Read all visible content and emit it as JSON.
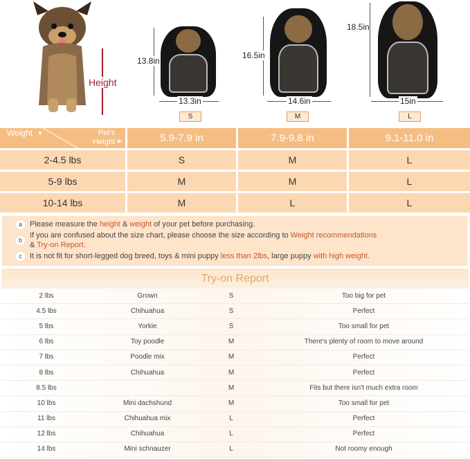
{
  "hero": {
    "height_label": "Height"
  },
  "products": [
    {
      "size": "S",
      "height": "13.8in",
      "width": "13.3in"
    },
    {
      "size": "M",
      "height": "16.5in",
      "width": "14.6in"
    },
    {
      "size": "L",
      "height": "18.5in",
      "width": "15in"
    }
  ],
  "size_chart": {
    "corner_weight": "Weight",
    "corner_height": "Pet's Height",
    "columns": [
      "5.9-7.9 in",
      "7.9-9.8 in",
      "9.1-11.0 in"
    ],
    "rows": [
      {
        "weight": "2-4.5 lbs",
        "sizes": [
          "S",
          "M",
          "L"
        ]
      },
      {
        "weight": "5-9 lbs",
        "sizes": [
          "M",
          "M",
          "L"
        ]
      },
      {
        "weight": "10-14 lbs",
        "sizes": [
          "M",
          "L",
          "L"
        ]
      }
    ],
    "colors": {
      "header": "#f6bd83",
      "cell": "#fcd8b2",
      "highlight": "#c4562c"
    }
  },
  "notes": [
    {
      "marker": "a",
      "parts": [
        "Please measure the ",
        "height",
        " & ",
        "weight",
        " of your pet before purchasing."
      ]
    },
    {
      "marker": "b",
      "parts": [
        "If you are confused about the size chart, please choose the size according to ",
        "Weight recommendations",
        "& ",
        "Try-on Report."
      ]
    },
    {
      "marker": "c",
      "parts": [
        "It is not fit for short-legged dog breed, toys & mini puppy ",
        "less than 2lbs",
        ", large puppy ",
        "with high weight."
      ]
    }
  ],
  "try_on_report": {
    "title": "Try-on Report",
    "rows": [
      [
        "2 lbs",
        "Grown",
        "S",
        "Too big for pet"
      ],
      [
        "4.5 lbs",
        "Chihuahua",
        "S",
        "Perfect"
      ],
      [
        "5 lbs",
        "Yorkie",
        "S",
        "Too small for pet"
      ],
      [
        "6 lbs",
        "Toy poodle",
        "M",
        "There's plenty of room to move around"
      ],
      [
        "7 lbs",
        "Poodle mix",
        "M",
        "Perfect"
      ],
      [
        "8 lbs",
        "Chihuahua",
        "M",
        "Perfect"
      ],
      [
        "8.5 lbs",
        "",
        "M",
        "Fits but there isn't much extra room"
      ],
      [
        "10 lbs",
        "Mini dachshund",
        "M",
        "Too small for pet"
      ],
      [
        "11 lbs",
        "Chihuahua mix",
        "L",
        "Perfect"
      ],
      [
        "12 lbs",
        "Chihuahua",
        "L",
        "Perfect"
      ],
      [
        "14 lbs",
        "Mini schnauzer",
        "L",
        "Not roomy enough"
      ]
    ]
  }
}
